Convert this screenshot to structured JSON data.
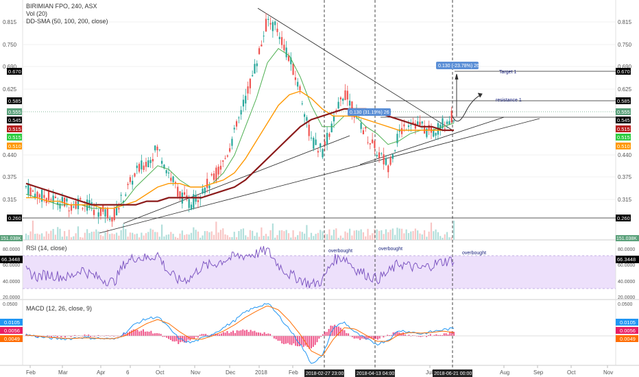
{
  "header": {
    "symbol": "BIRIMIAN FPO, 240, ASX",
    "volume": "Vol (20)",
    "sma": "DD-SMA (50, 100, 200, close)"
  },
  "colors": {
    "up": "#26a69a",
    "down": "#ef5350",
    "sma50": "#4caf50",
    "sma100": "#ff9800",
    "sma200": "#8b1a1a",
    "rsi": "#7e57c2",
    "macd": "#2196f3",
    "signal": "#ff6d00",
    "hist": "#e91e63",
    "badge": "#5b8fd6"
  },
  "price_pane": {
    "tick_labels": [
      "0.815",
      "0.750",
      "0.690",
      "0.625",
      "0.440",
      "0.375",
      "0.315"
    ],
    "right_tags": [
      {
        "text": "0.670",
        "bg": "#000000"
      },
      {
        "text": "0.585",
        "bg": "#000000"
      },
      {
        "text": "0.555",
        "bg": "#5aa07a"
      },
      {
        "text": "0.545",
        "bg": "#000000"
      },
      {
        "text": "0.515",
        "bg": "#b71c1c"
      },
      {
        "text": "0.515",
        "bg": "#2ecc40"
      },
      {
        "text": "0.510",
        "bg": "#ff9800"
      },
      {
        "text": "0.260",
        "bg": "#000000"
      }
    ],
    "left_tags": [
      {
        "text": "0.670",
        "bg": "#000000"
      },
      {
        "text": "0.585",
        "bg": "#000000"
      },
      {
        "text": "0.555",
        "bg": "#5aa07a"
      },
      {
        "text": "0.545",
        "bg": "#000000"
      },
      {
        "text": "0.515",
        "bg": "#b71c1c"
      },
      {
        "text": "0.515",
        "bg": "#2ecc40"
      },
      {
        "text": "0.510",
        "bg": "#ff9800"
      },
      {
        "text": "0.260",
        "bg": "#000000"
      }
    ],
    "badges": [
      "0.130 (-23.78%) 26",
      "0.130 (31.19%) 26"
    ],
    "annotations": [
      "Target 1",
      "resistance 1"
    ],
    "volume_label": "151.038K"
  },
  "rsi_pane": {
    "legend": "RSI (14, close)",
    "tick_labels": [
      "80.0000",
      "60.0000",
      "40.0000",
      "20.0000"
    ],
    "value_tag": "66.3448",
    "annotations": [
      "overbought",
      "overbought",
      "overbought"
    ]
  },
  "macd_pane": {
    "legend": "MACD (12, 26, close, 9)",
    "top_tick": "0.0500",
    "tags": [
      {
        "text": "0.0105",
        "bg": "#2196f3"
      },
      {
        "text": "0.0056",
        "bg": "#e91e63"
      },
      {
        "text": "0.0049",
        "bg": "#ff6d00"
      }
    ]
  },
  "x_axis": {
    "labels": [
      "Feb",
      "Mar",
      "Apr",
      "6",
      "Oct",
      "Nov",
      "Dec",
      "2018",
      "Feb",
      "Jul",
      "Aug",
      "Sep",
      "Oct",
      "Nov"
    ],
    "date_tags": [
      "2018-02-27 23:00:00",
      "2018-04-13 04:00:00",
      "2018-06-21 00:00:00"
    ]
  },
  "chart_data": {
    "type": "line",
    "series": [
      {
        "values": [
          0.35,
          0.33,
          0.32,
          0.31,
          0.3,
          0.31,
          0.29,
          0.28,
          0.27,
          0.33,
          0.39,
          0.42,
          0.46,
          0.39,
          0.33,
          0.3,
          0.34,
          0.37,
          0.42,
          0.5,
          0.6,
          0.7,
          0.82,
          0.79,
          0.71,
          0.62,
          0.48,
          0.45,
          0.53,
          0.62,
          0.56,
          0.5,
          0.45,
          0.41,
          0.5,
          0.54,
          0.52,
          0.5,
          0.53,
          0.55
        ]
      },
      {
        "values": [
          0.33,
          0.32,
          0.31,
          0.3,
          0.3,
          0.3,
          0.29,
          0.29,
          0.29,
          0.31,
          0.35,
          0.38,
          0.41,
          0.4,
          0.37,
          0.35,
          0.35,
          0.36,
          0.39,
          0.44,
          0.52,
          0.6,
          0.7,
          0.74,
          0.72,
          0.66,
          0.58,
          0.52,
          0.52,
          0.55,
          0.55,
          0.52,
          0.5,
          0.47,
          0.48,
          0.5,
          0.51,
          0.51,
          0.52,
          0.53
        ]
      },
      {
        "values": [
          0.32,
          0.32,
          0.31,
          0.31,
          0.3,
          0.3,
          0.3,
          0.29,
          0.29,
          0.3,
          0.31,
          0.33,
          0.35,
          0.36,
          0.36,
          0.35,
          0.35,
          0.36,
          0.37,
          0.39,
          0.43,
          0.48,
          0.53,
          0.58,
          0.61,
          0.62,
          0.6,
          0.57,
          0.55,
          0.55,
          0.55,
          0.54,
          0.53,
          0.52,
          0.51,
          0.51,
          0.51,
          0.51,
          0.51,
          0.51
        ]
      },
      {
        "values": [
          0.36,
          0.35,
          0.34,
          0.33,
          0.32,
          0.31,
          0.3,
          0.3,
          0.3,
          0.3,
          0.3,
          0.31,
          0.31,
          0.32,
          0.32,
          0.32,
          0.32,
          0.33,
          0.34,
          0.35,
          0.37,
          0.4,
          0.43,
          0.46,
          0.49,
          0.52,
          0.54,
          0.55,
          0.56,
          0.57,
          0.57,
          0.57,
          0.56,
          0.55,
          0.54,
          0.53,
          0.52,
          0.52,
          0.51,
          0.51
        ]
      }
    ],
    "rsi": [
      52,
      45,
      48,
      46,
      44,
      55,
      47,
      42,
      38,
      62,
      70,
      68,
      73,
      50,
      40,
      44,
      58,
      60,
      66,
      70,
      72,
      74,
      78,
      60,
      48,
      42,
      35,
      40,
      66,
      70,
      55,
      48,
      42,
      50,
      62,
      58,
      55,
      60,
      64,
      66
    ],
    "macd": [
      0.002,
      -0.001,
      -0.003,
      -0.004,
      -0.004,
      -0.002,
      -0.003,
      -0.004,
      -0.005,
      0.004,
      0.018,
      0.025,
      0.028,
      0.012,
      -0.005,
      -0.01,
      -0.004,
      0.003,
      0.012,
      0.022,
      0.035,
      0.042,
      0.048,
      0.03,
      0.01,
      -0.012,
      -0.04,
      -0.03,
      0.012,
      0.02,
      0.005,
      -0.005,
      -0.012,
      -0.006,
      0.008,
      0.006,
      0.003,
      0.006,
      0.009,
      0.0105
    ],
    "signal": [
      0.001,
      0.0,
      -0.002,
      -0.003,
      -0.004,
      -0.003,
      -0.003,
      -0.004,
      -0.004,
      0.0,
      0.009,
      0.018,
      0.024,
      0.018,
      0.006,
      -0.004,
      -0.005,
      0.0,
      0.007,
      0.016,
      0.027,
      0.036,
      0.044,
      0.038,
      0.022,
      0.002,
      -0.022,
      -0.03,
      -0.005,
      0.012,
      0.01,
      0.001,
      -0.008,
      -0.008,
      0.002,
      0.005,
      0.004,
      0.005,
      0.007,
      0.0049
    ],
    "ylim": [
      0.2,
      0.86
    ],
    "rsi_ylim": [
      15,
      85
    ],
    "macd_ylim": [
      -0.07,
      0.05
    ]
  }
}
